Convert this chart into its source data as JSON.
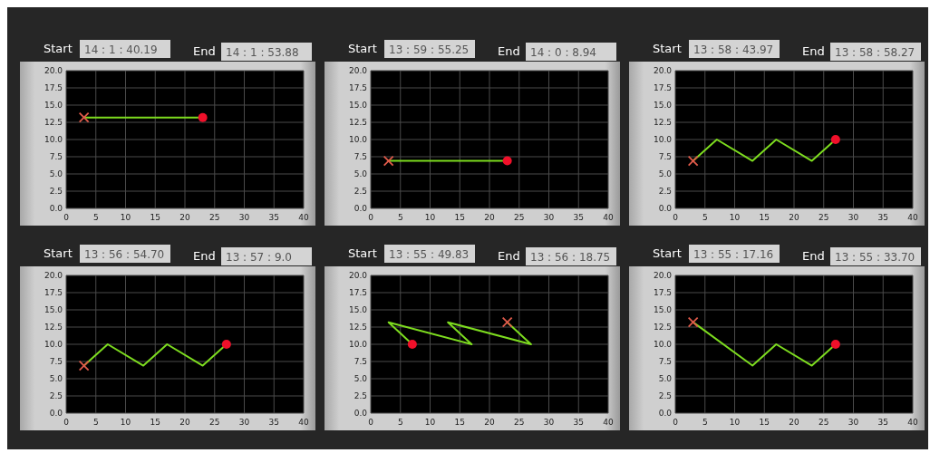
{
  "chart_data": [
    {
      "type": "line",
      "annotations": [
        "Start",
        "14 : 1 : 40.19",
        "End",
        "14 : 1 : 53.88"
      ],
      "xlim": [
        0,
        40
      ],
      "ylim": [
        0,
        20
      ],
      "xticks": [
        0,
        5,
        10,
        15,
        20,
        25,
        30,
        35,
        40
      ],
      "yticks": [
        {
          "value": 0,
          "label": "0.0"
        },
        {
          "value": 2.5,
          "label": "2.5"
        },
        {
          "value": 5,
          "label": "5.0"
        },
        {
          "value": 7.5,
          "label": "7.5"
        },
        {
          "value": 10,
          "label": "10.0"
        },
        {
          "value": 12.5,
          "label": "12.5"
        },
        {
          "value": 15,
          "label": "15.0"
        },
        {
          "value": 17.5,
          "label": "17.5"
        },
        {
          "value": 20,
          "label": "20.0"
        }
      ],
      "grid": true,
      "series": [
        {
          "color": "#7ddc1f",
          "x": [
            3,
            23
          ],
          "values": [
            13.2,
            13.2
          ]
        },
        {
          "type": "scatter",
          "marker": "cross",
          "color": "#e05a4a",
          "x": [
            3
          ],
          "values": [
            13.2
          ]
        },
        {
          "type": "scatter",
          "marker": "circle",
          "color": "#f0102a",
          "x": [
            23
          ],
          "values": [
            13.2
          ]
        }
      ]
    },
    {
      "type": "line",
      "annotations": [
        "Start",
        "13 : 59 : 55.25",
        "End",
        "14 : 0 : 8.94"
      ],
      "xlim": [
        0,
        40
      ],
      "ylim": [
        0,
        20
      ],
      "xticks": [
        0,
        5,
        10,
        15,
        20,
        25,
        30,
        35,
        40
      ],
      "yticks": [
        {
          "value": 0,
          "label": "0.0"
        },
        {
          "value": 2.5,
          "label": "2.5"
        },
        {
          "value": 5,
          "label": "5.0"
        },
        {
          "value": 7.5,
          "label": "7.5"
        },
        {
          "value": 10,
          "label": "10.0"
        },
        {
          "value": 12.5,
          "label": "12.5"
        },
        {
          "value": 15,
          "label": "15.0"
        },
        {
          "value": 17.5,
          "label": "17.5"
        },
        {
          "value": 20,
          "label": "20.0"
        }
      ],
      "grid": true,
      "series": [
        {
          "color": "#7ddc1f",
          "x": [
            3,
            23
          ],
          "values": [
            6.9,
            6.9
          ]
        },
        {
          "type": "scatter",
          "marker": "cross",
          "color": "#e05a4a",
          "x": [
            3
          ],
          "values": [
            6.9
          ]
        },
        {
          "type": "scatter",
          "marker": "circle",
          "color": "#f0102a",
          "x": [
            23
          ],
          "values": [
            6.9
          ]
        }
      ]
    },
    {
      "type": "line",
      "annotations": [
        "Start",
        "13 : 58 : 43.97",
        "End",
        "13 : 58 : 58.27"
      ],
      "xlim": [
        0,
        40
      ],
      "ylim": [
        0,
        20
      ],
      "xticks": [
        0,
        5,
        10,
        15,
        20,
        25,
        30,
        35,
        40
      ],
      "yticks": [
        {
          "value": 0,
          "label": "0.0"
        },
        {
          "value": 2.5,
          "label": "2.5"
        },
        {
          "value": 5,
          "label": "5.0"
        },
        {
          "value": 7.5,
          "label": "7.5"
        },
        {
          "value": 10,
          "label": "10.0"
        },
        {
          "value": 12.5,
          "label": "12.5"
        },
        {
          "value": 15,
          "label": "15.0"
        },
        {
          "value": 17.5,
          "label": "17.5"
        },
        {
          "value": 20,
          "label": "20.0"
        }
      ],
      "grid": true,
      "series": [
        {
          "color": "#7ddc1f",
          "x": [
            3,
            7,
            13,
            17,
            23,
            27
          ],
          "values": [
            6.9,
            10,
            6.9,
            10,
            6.9,
            10
          ]
        },
        {
          "type": "scatter",
          "marker": "cross",
          "color": "#e05a4a",
          "x": [
            3
          ],
          "values": [
            6.9
          ]
        },
        {
          "type": "scatter",
          "marker": "circle",
          "color": "#f0102a",
          "x": [
            27
          ],
          "values": [
            10
          ]
        }
      ]
    },
    {
      "type": "line",
      "annotations": [
        "Start",
        "13 : 56 : 54.70",
        "End",
        "13 : 57 : 9.0"
      ],
      "xlim": [
        0,
        40
      ],
      "ylim": [
        0,
        20
      ],
      "xticks": [
        0,
        5,
        10,
        15,
        20,
        25,
        30,
        35,
        40
      ],
      "yticks": [
        {
          "value": 0,
          "label": "0.0"
        },
        {
          "value": 2.5,
          "label": "2.5"
        },
        {
          "value": 5,
          "label": "5.0"
        },
        {
          "value": 7.5,
          "label": "7.5"
        },
        {
          "value": 10,
          "label": "10.0"
        },
        {
          "value": 12.5,
          "label": "12.5"
        },
        {
          "value": 15,
          "label": "15.0"
        },
        {
          "value": 17.5,
          "label": "17.5"
        },
        {
          "value": 20,
          "label": "20.0"
        }
      ],
      "grid": true,
      "series": [
        {
          "color": "#7ddc1f",
          "x": [
            3,
            7,
            13,
            17,
            23,
            27
          ],
          "values": [
            6.9,
            10,
            6.9,
            10,
            6.9,
            10
          ]
        },
        {
          "type": "scatter",
          "marker": "cross",
          "color": "#e05a4a",
          "x": [
            3
          ],
          "values": [
            6.9
          ]
        },
        {
          "type": "scatter",
          "marker": "circle",
          "color": "#f0102a",
          "x": [
            27
          ],
          "values": [
            10
          ]
        }
      ]
    },
    {
      "type": "line",
      "annotations": [
        "Start",
        "13 : 55 : 49.83",
        "End",
        "13 : 56 : 18.75"
      ],
      "xlim": [
        0,
        40
      ],
      "ylim": [
        0,
        20
      ],
      "xticks": [
        0,
        5,
        10,
        15,
        20,
        25,
        30,
        35,
        40
      ],
      "yticks": [
        {
          "value": 0,
          "label": "0.0"
        },
        {
          "value": 2.5,
          "label": "2.5"
        },
        {
          "value": 5,
          "label": "5.0"
        },
        {
          "value": 7.5,
          "label": "7.5"
        },
        {
          "value": 10,
          "label": "10.0"
        },
        {
          "value": 12.5,
          "label": "12.5"
        },
        {
          "value": 15,
          "label": "15.0"
        },
        {
          "value": 17.5,
          "label": "17.5"
        },
        {
          "value": 20,
          "label": "20.0"
        }
      ],
      "grid": true,
      "series": [
        {
          "color": "#7ddc1f",
          "x": [
            23,
            27,
            13,
            17,
            3,
            7
          ],
          "values": [
            13.2,
            10,
            13.2,
            10,
            13.2,
            10
          ]
        },
        {
          "type": "scatter",
          "marker": "cross",
          "color": "#e05a4a",
          "x": [
            23
          ],
          "values": [
            13.2
          ]
        },
        {
          "type": "scatter",
          "marker": "circle",
          "color": "#f0102a",
          "x": [
            7
          ],
          "values": [
            10
          ]
        }
      ]
    },
    {
      "type": "line",
      "annotations": [
        "Start",
        "13 : 55 : 17.16",
        "End",
        "13 : 55 : 33.70"
      ],
      "xlim": [
        0,
        40
      ],
      "ylim": [
        0,
        20
      ],
      "xticks": [
        0,
        5,
        10,
        15,
        20,
        25,
        30,
        35,
        40
      ],
      "yticks": [
        {
          "value": 0,
          "label": "0.0"
        },
        {
          "value": 2.5,
          "label": "2.5"
        },
        {
          "value": 5,
          "label": "5.0"
        },
        {
          "value": 7.5,
          "label": "7.5"
        },
        {
          "value": 10,
          "label": "10.0"
        },
        {
          "value": 12.5,
          "label": "12.5"
        },
        {
          "value": 15,
          "label": "15.0"
        },
        {
          "value": 17.5,
          "label": "17.5"
        },
        {
          "value": 20,
          "label": "20.0"
        }
      ],
      "grid": true,
      "series": [
        {
          "color": "#7ddc1f",
          "x": [
            3,
            13,
            17,
            23,
            27
          ],
          "values": [
            13.2,
            6.9,
            10,
            6.9,
            10
          ]
        },
        {
          "type": "scatter",
          "marker": "cross",
          "color": "#e05a4a",
          "x": [
            3
          ],
          "values": [
            13.2
          ]
        },
        {
          "type": "scatter",
          "marker": "circle",
          "color": "#f0102a",
          "x": [
            27
          ],
          "values": [
            10
          ]
        }
      ]
    }
  ]
}
